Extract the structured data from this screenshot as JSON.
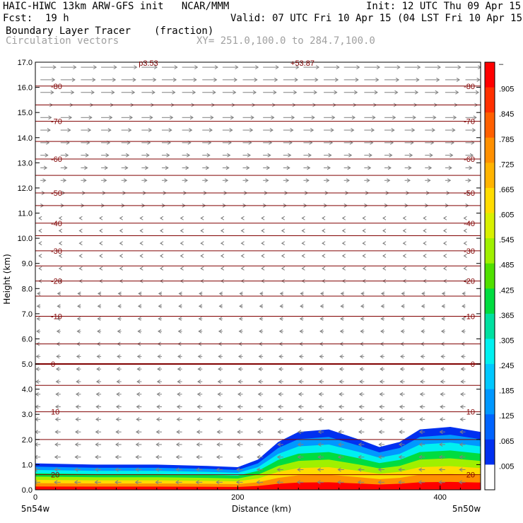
{
  "header": {
    "model_line": "HAIC-HIWC 13km ARW-GFS init   NCAR/MMM",
    "init_line": "Init: 12 UTC Thu 09 Apr 15",
    "fcst_label": "Fcst:",
    "fcst_value": "19 h",
    "valid_line": "Valid: 07 UTC Fri 10 Apr 15 (04 LST Fri 10 Apr 15)",
    "field_name": "Boundary Layer Tracer",
    "field_units": "(fraction)",
    "vector_label": "Circulation vectors",
    "xy_label": "XY= 251.0,100.0 to 284.7,100.0"
  },
  "chart_data": {
    "type": "heatmap",
    "xlabel": "Distance (km)",
    "ylabel": "Height (km)",
    "xlim": [
      0,
      440
    ],
    "ylim": [
      0,
      17
    ],
    "xticks": [
      "0",
      "200",
      "400"
    ],
    "xtick_values": [
      0,
      200,
      400
    ],
    "yticks": [
      "0.0",
      "1.0",
      "2.0",
      "3.0",
      "4.0",
      "5.0",
      "6.0",
      "7.0",
      "8.0",
      "9.0",
      "10.0",
      "11.0",
      "12.0",
      "13.0",
      "14.0",
      "15.0",
      "16.0",
      "17.0"
    ],
    "left_endpoint": "5n54w",
    "right_endpoint": "5n50w",
    "top_clipped_labels": [
      "p3.53",
      "+53.87"
    ],
    "colorbar": {
      "labels": [
        "–",
        ".905",
        ".845",
        ".785",
        ".725",
        ".665",
        ".605",
        ".545",
        ".485",
        ".425",
        ".365",
        ".305",
        ".245",
        ".185",
        ".125",
        ".065",
        ".005"
      ],
      "colors": [
        "#ff0000",
        "#ff3000",
        "#ff6000",
        "#ff9000",
        "#ffb400",
        "#ffdc00",
        "#d8f000",
        "#a0f000",
        "#50e000",
        "#00dc40",
        "#00e0a0",
        "#00f0f0",
        "#00c8ff",
        "#0098ff",
        "#0064ff",
        "#0030f0",
        "#ffffff"
      ]
    },
    "isotherms": [
      {
        "label": "-80",
        "y": 16.05
      },
      {
        "label": "-70",
        "y": 14.65
      },
      {
        "label": "-60",
        "y": 13.15
      },
      {
        "label": "-50",
        "y": 11.8
      },
      {
        "label": "-40",
        "y": 10.6
      },
      {
        "label": "-30",
        "y": 9.5
      },
      {
        "label": "-20",
        "y": 8.3
      },
      {
        "label": "-10",
        "y": 6.9
      },
      {
        "label": "0",
        "y": 5.0
      },
      {
        "label": "10",
        "y": 3.1
      },
      {
        "label": "20",
        "y": 0.6
      }
    ],
    "unlabeled_contours": [
      15.3,
      13.85,
      12.5,
      11.3,
      10.1,
      8.9,
      7.7,
      5.8,
      4.15,
      2.0
    ],
    "tracer_top_km": [
      [
        0,
        1.05
      ],
      [
        60,
        1.0
      ],
      [
        120,
        1.0
      ],
      [
        170,
        0.95
      ],
      [
        200,
        0.9
      ],
      [
        220,
        1.2
      ],
      [
        240,
        1.9
      ],
      [
        260,
        2.3
      ],
      [
        290,
        2.4
      ],
      [
        320,
        2.0
      ],
      [
        340,
        1.7
      ],
      [
        360,
        1.9
      ],
      [
        380,
        2.4
      ],
      [
        410,
        2.5
      ],
      [
        440,
        2.3
      ]
    ]
  }
}
